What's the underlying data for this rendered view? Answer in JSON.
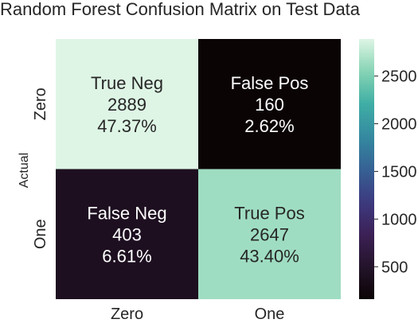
{
  "chart_data": {
    "type": "heatmap",
    "title": "Random Forest Confusion Matrix on Test Data",
    "xlabel": "",
    "ylabel": "Actual",
    "x_tick_labels": [
      "Zero",
      "One"
    ],
    "y_tick_labels": [
      "Zero",
      "One"
    ],
    "cells": [
      [
        {
          "label": "True Neg",
          "count": 2889,
          "percent": "47.37%"
        },
        {
          "label": "False Pos",
          "count": 160,
          "percent": "2.62%"
        }
      ],
      [
        {
          "label": "False Neg",
          "count": 403,
          "percent": "6.61%"
        },
        {
          "label": "True Pos",
          "count": 2647,
          "percent": "43.40%"
        }
      ]
    ],
    "colorbar": {
      "colormap": "mako",
      "range": [
        160,
        2889
      ],
      "ticks": [
        500,
        1000,
        1500,
        2000,
        2500
      ]
    },
    "colors": {
      "cell_text_light": "#ffffff",
      "cell_text_dark": "#262626"
    }
  }
}
